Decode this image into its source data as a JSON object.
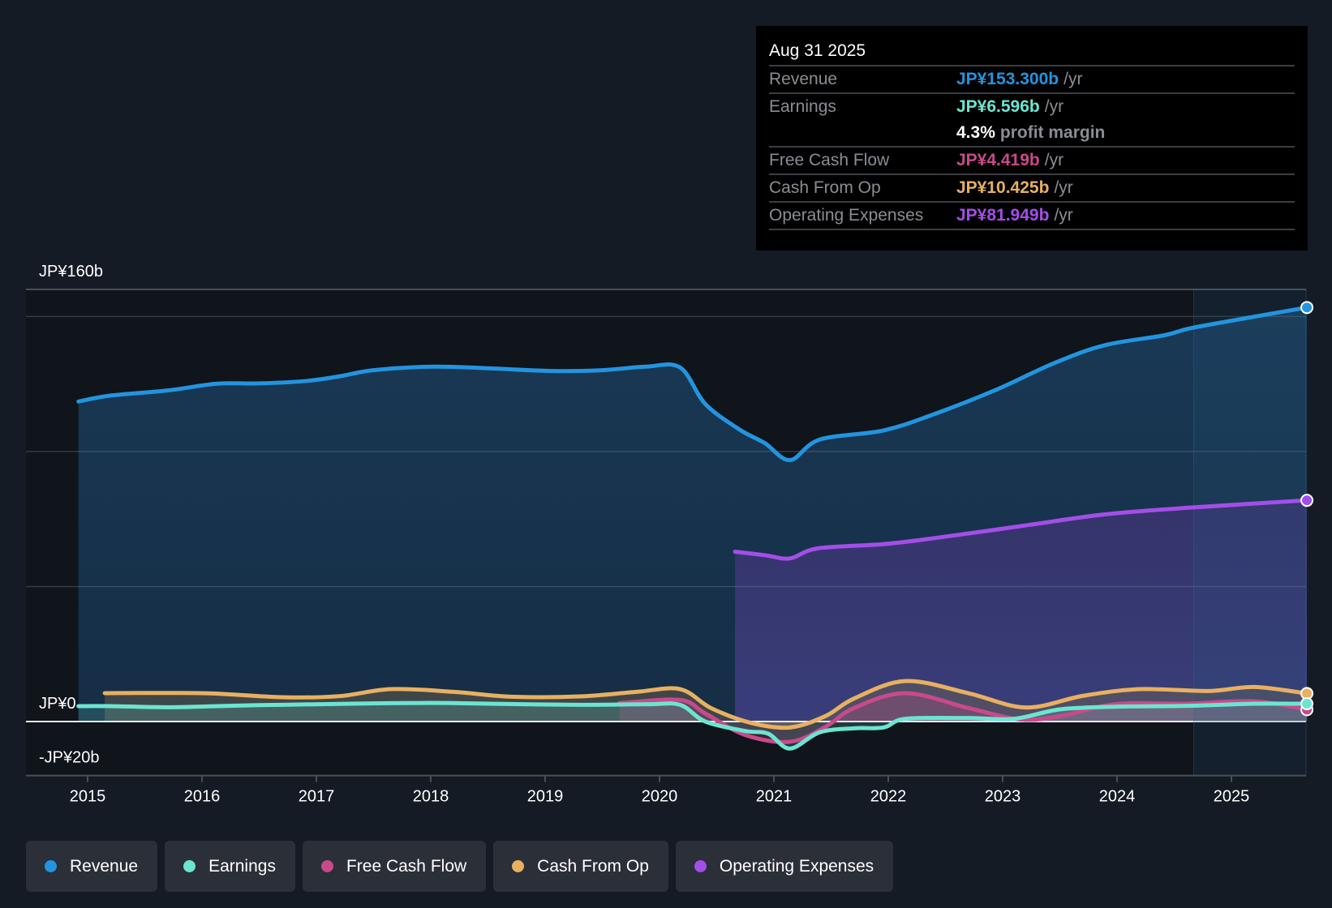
{
  "tooltip": {
    "date": "Aug 31 2025",
    "rows": [
      {
        "key": "Revenue",
        "value": "JP¥153.300b",
        "unit": "/yr",
        "color": "#2394df"
      },
      {
        "key": "Earnings",
        "value": "JP¥6.596b",
        "unit": "/yr",
        "color": "#6ce5d0"
      },
      {
        "key": "",
        "value": "4.3%",
        "unit": "profit margin",
        "color": "#ffffff"
      },
      {
        "key": "Free Cash Flow",
        "value": "JP¥4.419b",
        "unit": "/yr",
        "color": "#c84a8a"
      },
      {
        "key": "Cash From Op",
        "value": "JP¥10.425b",
        "unit": "/yr",
        "color": "#e8b060"
      },
      {
        "key": "Operating Expenses",
        "value": "JP¥81.949b",
        "unit": "/yr",
        "color": "#a34ee8"
      }
    ]
  },
  "legend": [
    {
      "label": "Revenue",
      "color": "#2394df"
    },
    {
      "label": "Earnings",
      "color": "#6ce5d0"
    },
    {
      "label": "Free Cash Flow",
      "color": "#c84a8a"
    },
    {
      "label": "Cash From Op",
      "color": "#e8b060"
    },
    {
      "label": "Operating Expenses",
      "color": "#a34ee8"
    }
  ],
  "chart_data": {
    "type": "area",
    "title": "",
    "xlabel": "",
    "ylabel": "",
    "y_unit": "JP¥ billions",
    "ylim": [
      -20,
      160
    ],
    "xlim": [
      2014.5,
      2025.67
    ],
    "y_tick_labels": [
      {
        "value": 160,
        "label": "JP¥160b"
      },
      {
        "value": 0,
        "label": "JP¥0"
      },
      {
        "value": -20,
        "label": "-JP¥20b"
      }
    ],
    "y_gridlines": [
      160,
      150,
      100,
      50,
      0
    ],
    "x_ticks": [
      2015,
      2016,
      2017,
      2018,
      2019,
      2020,
      2021,
      2022,
      2023,
      2024,
      2025
    ],
    "x_tick_labels": [
      "2015",
      "2016",
      "2017",
      "2018",
      "2019",
      "2020",
      "2021",
      "2022",
      "2023",
      "2024",
      "2025"
    ],
    "highlight_region_start": 2024.67,
    "grid": true,
    "legend_position": "bottom-left",
    "series": [
      {
        "name": "Revenue",
        "color": "#2394df",
        "points": [
          [
            2014.92,
            118.5
          ],
          [
            2015.2,
            120.7
          ],
          [
            2015.7,
            122.6
          ],
          [
            2016.13,
            125.1
          ],
          [
            2016.5,
            125.2
          ],
          [
            2016.91,
            126.1
          ],
          [
            2017.2,
            127.8
          ],
          [
            2017.5,
            130.1
          ],
          [
            2018.02,
            131.4
          ],
          [
            2018.5,
            130.8
          ],
          [
            2019.06,
            129.8
          ],
          [
            2019.5,
            130.1
          ],
          [
            2019.88,
            131.4
          ],
          [
            2020.18,
            131.1
          ],
          [
            2020.4,
            117.6
          ],
          [
            2020.7,
            108.1
          ],
          [
            2020.92,
            103.1
          ],
          [
            2021.14,
            96.8
          ],
          [
            2021.4,
            104.4
          ],
          [
            2021.96,
            107.8
          ],
          [
            2022.4,
            113.8
          ],
          [
            2022.93,
            122.6
          ],
          [
            2023.45,
            132.7
          ],
          [
            2023.89,
            139.3
          ],
          [
            2024.41,
            143.0
          ],
          [
            2024.64,
            145.6
          ],
          [
            2025.16,
            149.6
          ],
          [
            2025.66,
            153.3
          ]
        ]
      },
      {
        "name": "Operating Expenses",
        "color": "#a34ee8",
        "points": [
          [
            2020.66,
            62.9
          ],
          [
            2020.92,
            61.6
          ],
          [
            2021.14,
            60.4
          ],
          [
            2021.38,
            64.1
          ],
          [
            2021.96,
            65.7
          ],
          [
            2022.4,
            67.9
          ],
          [
            2023.15,
            72.3
          ],
          [
            2023.89,
            76.7
          ],
          [
            2024.64,
            79.2
          ],
          [
            2025.66,
            81.9
          ]
        ]
      },
      {
        "name": "Cash From Op",
        "color": "#e8b060",
        "points": [
          [
            2015.15,
            10.5
          ],
          [
            2015.7,
            10.6
          ],
          [
            2016.1,
            10.4
          ],
          [
            2016.7,
            9.0
          ],
          [
            2017.2,
            9.4
          ],
          [
            2017.65,
            12.0
          ],
          [
            2018.2,
            11.0
          ],
          [
            2018.7,
            9.2
          ],
          [
            2019.3,
            9.3
          ],
          [
            2019.8,
            11.0
          ],
          [
            2020.18,
            12.0
          ],
          [
            2020.45,
            5.0
          ],
          [
            2020.8,
            -0.5
          ],
          [
            2021.14,
            -2.2
          ],
          [
            2021.45,
            2.0
          ],
          [
            2021.7,
            8.5
          ],
          [
            2022.15,
            15.0
          ],
          [
            2022.7,
            10.5
          ],
          [
            2023.2,
            5.2
          ],
          [
            2023.7,
            9.5
          ],
          [
            2024.2,
            12.0
          ],
          [
            2024.8,
            11.3
          ],
          [
            2025.2,
            12.8
          ],
          [
            2025.66,
            10.4
          ]
        ]
      },
      {
        "name": "Free Cash Flow",
        "color": "#c84a8a",
        "points": [
          [
            2019.65,
            6.8
          ],
          [
            2020.18,
            8.0
          ],
          [
            2020.4,
            3.0
          ],
          [
            2020.75,
            -5.0
          ],
          [
            2021.14,
            -7.5
          ],
          [
            2021.45,
            -2.0
          ],
          [
            2021.7,
            5.0
          ],
          [
            2022.15,
            10.5
          ],
          [
            2022.7,
            5.0
          ],
          [
            2023.15,
            0.8
          ],
          [
            2023.5,
            2.0
          ],
          [
            2024.0,
            6.5
          ],
          [
            2024.6,
            6.6
          ],
          [
            2025.2,
            7.5
          ],
          [
            2025.66,
            4.4
          ]
        ]
      },
      {
        "name": "Earnings",
        "color": "#6ce5d0",
        "points": [
          [
            2014.92,
            5.7
          ],
          [
            2015.2,
            5.7
          ],
          [
            2015.7,
            5.3
          ],
          [
            2016.3,
            5.9
          ],
          [
            2016.7,
            6.2
          ],
          [
            2017.3,
            6.6
          ],
          [
            2018.0,
            6.9
          ],
          [
            2018.5,
            6.6
          ],
          [
            2019.3,
            6.2
          ],
          [
            2019.9,
            6.4
          ],
          [
            2020.18,
            6.2
          ],
          [
            2020.4,
            0.0
          ],
          [
            2020.75,
            -3.5
          ],
          [
            2020.95,
            -4.5
          ],
          [
            2021.14,
            -10.0
          ],
          [
            2021.4,
            -4.0
          ],
          [
            2021.7,
            -2.5
          ],
          [
            2021.96,
            -2.2
          ],
          [
            2022.15,
            1.0
          ],
          [
            2022.7,
            1.3
          ],
          [
            2023.1,
            1.0
          ],
          [
            2023.5,
            4.5
          ],
          [
            2024.0,
            5.5
          ],
          [
            2024.6,
            5.8
          ],
          [
            2025.2,
            6.6
          ],
          [
            2025.66,
            6.6
          ]
        ]
      }
    ]
  }
}
